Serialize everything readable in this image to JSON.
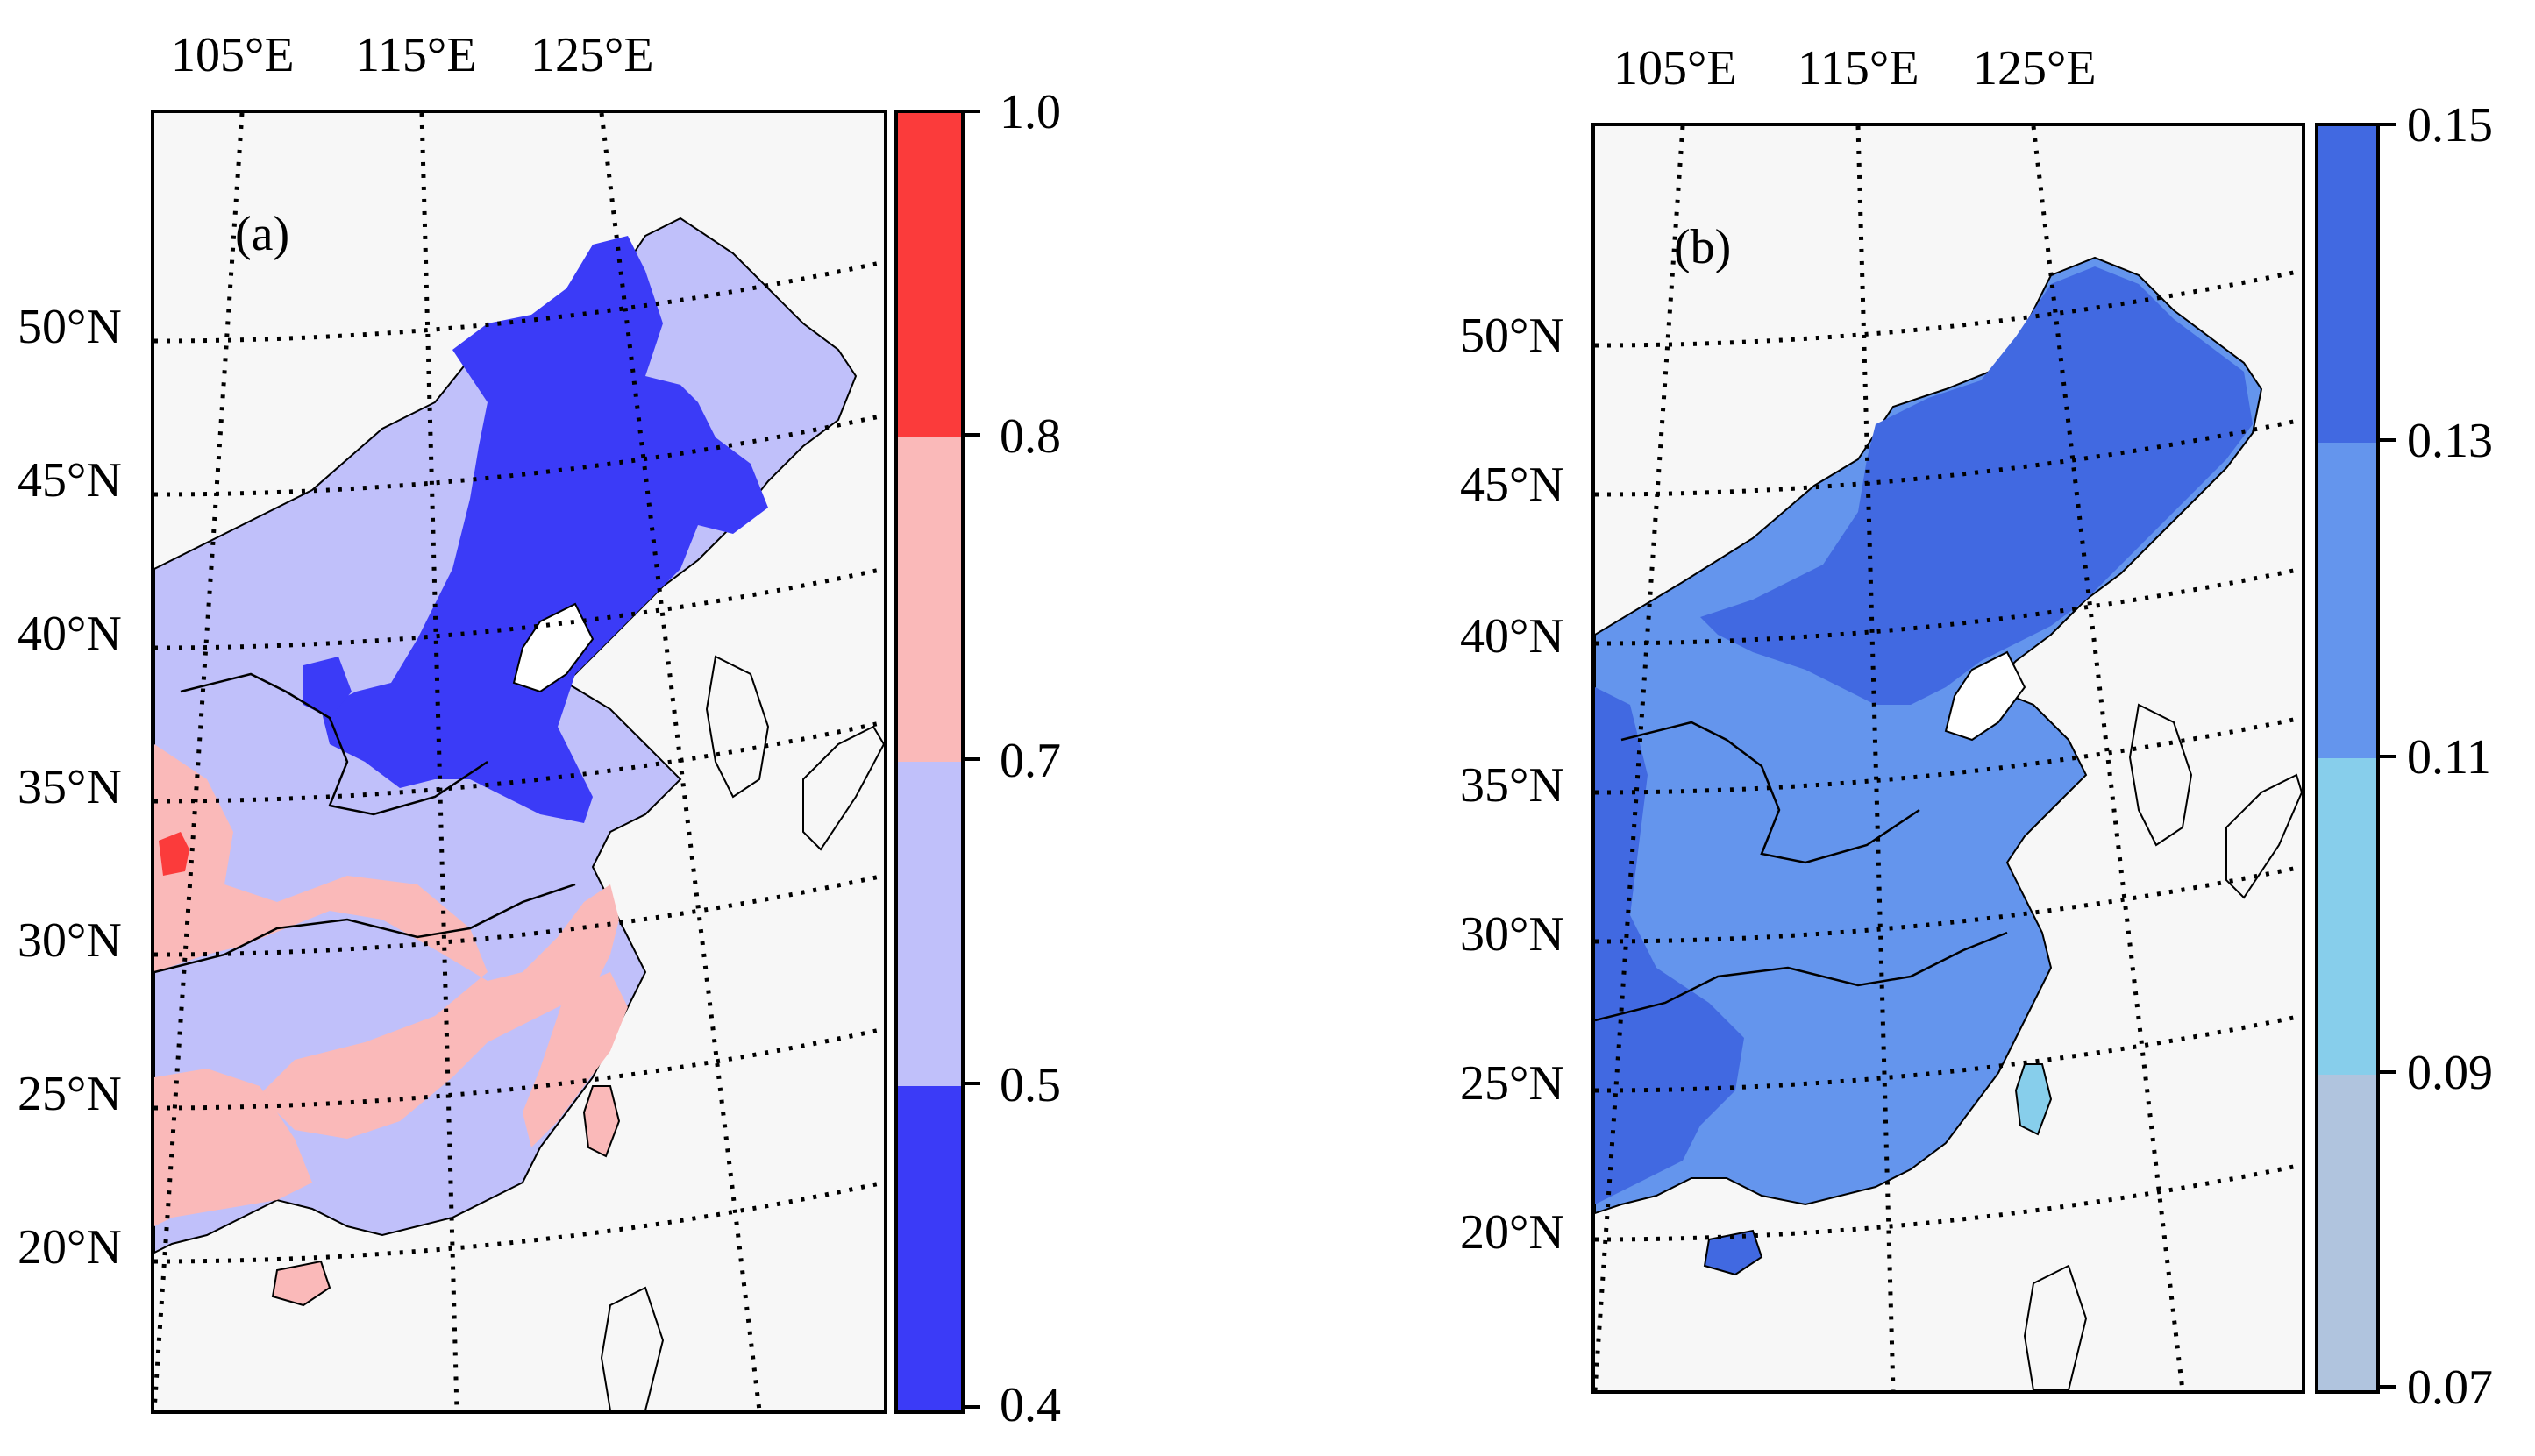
{
  "panel_a": {
    "label": "(a)",
    "lon_labels": [
      "105°E",
      "115°E",
      "125°E"
    ],
    "lat_labels": [
      "50°N",
      "45°N",
      "40°N",
      "35°N",
      "30°N",
      "25°N",
      "20°N"
    ],
    "colorbar": {
      "tick_labels": [
        "1.0",
        "0.8",
        "0.7",
        "0.5",
        "0.4"
      ],
      "levels": [
        0.4,
        0.5,
        0.7,
        0.8,
        1.0
      ],
      "colors": [
        "#3b3bf7",
        "#c0c0fa",
        "#fab9b9",
        "#fb3b3b"
      ]
    }
  },
  "panel_b": {
    "label": "(b)",
    "lon_labels": [
      "105°E",
      "115°E",
      "125°E"
    ],
    "lat_labels": [
      "50°N",
      "45°N",
      "40°N",
      "35°N",
      "30°N",
      "25°N",
      "20°N"
    ],
    "colorbar": {
      "tick_labels": [
        "0.15",
        "0.13",
        "0.11",
        "0.09",
        "0.07"
      ],
      "levels": [
        0.07,
        0.09,
        0.11,
        0.13,
        0.15
      ],
      "colors": [
        "#b0c4de",
        "#87ceeb",
        "#6495ed",
        "#4169e1"
      ]
    }
  }
}
